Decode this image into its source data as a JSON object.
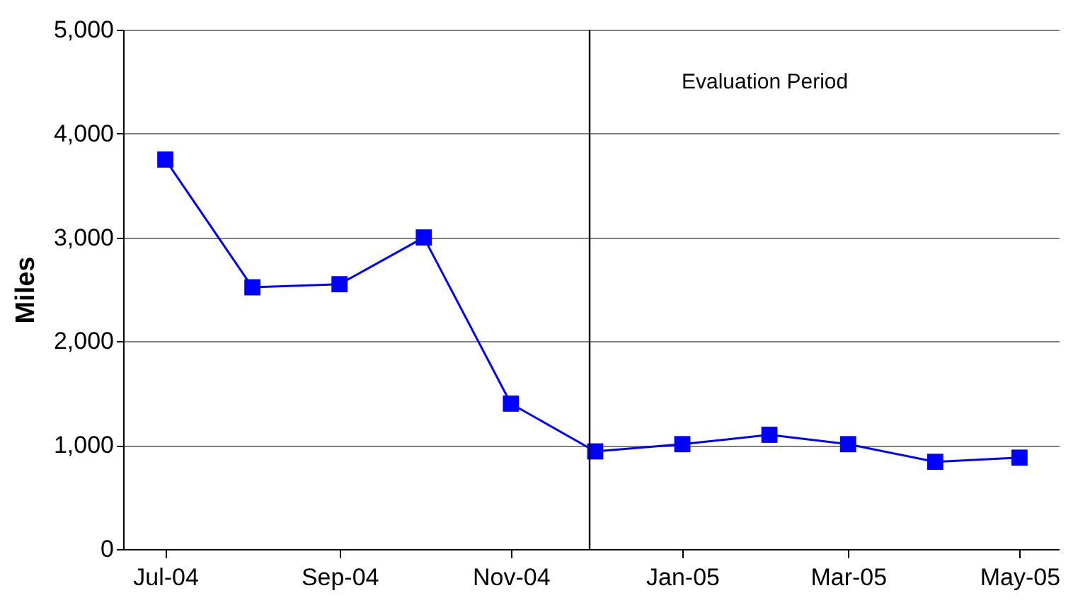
{
  "chart_data": {
    "type": "line",
    "ylabel": "Miles",
    "x": [
      "2004-07",
      "2004-08",
      "2004-09",
      "2004-10",
      "2004-11",
      "2004-12",
      "2005-01",
      "2005-02",
      "2005-03",
      "2005-04",
      "2005-05"
    ],
    "series": [
      {
        "color": "#0000ff",
        "values": [
          3750,
          2520,
          2550,
          3000,
          1400,
          940,
          1010,
          1100,
          1010,
          840,
          880
        ]
      }
    ],
    "xlim": [
      "2004-06-16",
      "2005-05-15"
    ],
    "xticks": [
      {
        "value": "2004-07",
        "label": "Jul-04"
      },
      {
        "value": "2004-09",
        "label": "Sep-04"
      },
      {
        "value": "2004-11",
        "label": "Nov-04"
      },
      {
        "value": "2005-01",
        "label": "Jan-05"
      },
      {
        "value": "2005-03",
        "label": "Mar-05"
      },
      {
        "value": "2005-05",
        "label": "May-05"
      }
    ],
    "ylim": [
      0,
      5000
    ],
    "yticks": [
      {
        "value": 0,
        "label": "0"
      },
      {
        "value": 1000,
        "label": "1,000"
      },
      {
        "value": 2000,
        "label": "2,000"
      },
      {
        "value": 3000,
        "label": "3,000"
      },
      {
        "value": 4000,
        "label": "4,000"
      },
      {
        "value": 5000,
        "label": "5,000"
      }
    ],
    "ref_lines": [
      {
        "axis": "x",
        "value": "2004-11-29",
        "label": "Evaluation Period",
        "color": "#000000"
      }
    ],
    "grid": "y",
    "marker": "square",
    "line_style": "solid"
  }
}
